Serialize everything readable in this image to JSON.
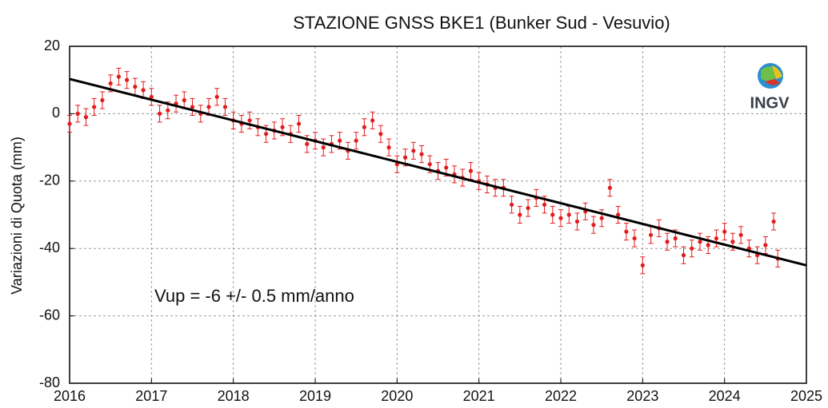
{
  "chart_data": {
    "type": "scatter",
    "title": "STAZIONE GNSS BKE1 (Bunker Sud - Vesuvio)",
    "y_label": "Variazioni di Quota (mm)",
    "annotation": "Vup = -6 +/- 0.5 mm/anno",
    "logo": "INGV",
    "xlim": [
      2016,
      2025
    ],
    "xticks": [
      2016,
      2017,
      2018,
      2019,
      2020,
      2021,
      2022,
      2023,
      2024,
      2025
    ],
    "ylim": [
      -80,
      20
    ],
    "yticks": [
      -80,
      -60,
      -40,
      -20,
      0,
      20
    ],
    "grid": true,
    "series": [
      {
        "type": "scatter",
        "color": "#e41a1c",
        "error": 2.5,
        "x": [
          2016.0,
          2016.1,
          2016.2,
          2016.3,
          2016.4,
          2016.5,
          2016.6,
          2016.7,
          2016.8,
          2016.9,
          2017.0,
          2017.1,
          2017.2,
          2017.3,
          2017.4,
          2017.5,
          2017.6,
          2017.7,
          2017.8,
          2017.9,
          2018.0,
          2018.1,
          2018.2,
          2018.3,
          2018.4,
          2018.5,
          2018.6,
          2018.7,
          2018.8,
          2018.9,
          2019.0,
          2019.1,
          2019.2,
          2019.3,
          2019.4,
          2019.5,
          2019.6,
          2019.7,
          2019.8,
          2019.9,
          2020.0,
          2020.1,
          2020.2,
          2020.3,
          2020.4,
          2020.5,
          2020.6,
          2020.7,
          2020.8,
          2020.9,
          2021.0,
          2021.1,
          2021.2,
          2021.3,
          2021.4,
          2021.5,
          2021.6,
          2021.7,
          2021.8,
          2021.9,
          2022.0,
          2022.1,
          2022.2,
          2022.3,
          2022.4,
          2022.5,
          2022.6,
          2022.7,
          2022.8,
          2022.9,
          2023.0,
          2023.1,
          2023.2,
          2023.3,
          2023.4,
          2023.5,
          2023.6,
          2023.7,
          2023.8,
          2023.9,
          2024.0,
          2024.1,
          2024.2,
          2024.3,
          2024.4,
          2024.5,
          2024.6,
          2024.65
        ],
        "values": [
          -3,
          0,
          -1,
          2,
          4,
          9,
          11,
          10,
          8,
          7,
          5,
          0,
          1,
          3,
          4,
          2,
          0,
          2,
          5,
          2,
          -2,
          -3,
          -2,
          -4,
          -6,
          -5,
          -4,
          -6,
          -3,
          -9,
          -8,
          -10,
          -9,
          -8,
          -11,
          -8,
          -4,
          -2,
          -6,
          -10,
          -15,
          -13,
          -11,
          -12,
          -15,
          -17,
          -16,
          -18,
          -19,
          -17,
          -20,
          -21,
          -22,
          -22,
          -27,
          -30,
          -28,
          -25,
          -27,
          -30,
          -31,
          -30,
          -32,
          -29,
          -33,
          -31,
          -22,
          -30,
          -35,
          -37,
          -45,
          -36,
          -34,
          -38,
          -37,
          -42,
          -40,
          -38,
          -39,
          -37,
          -35,
          -38,
          -36,
          -40,
          -42,
          -39,
          -32,
          -43
        ]
      },
      {
        "type": "line",
        "color": "#000000",
        "x": [
          2016,
          2025
        ],
        "values": [
          10.3,
          -45
        ]
      }
    ]
  }
}
